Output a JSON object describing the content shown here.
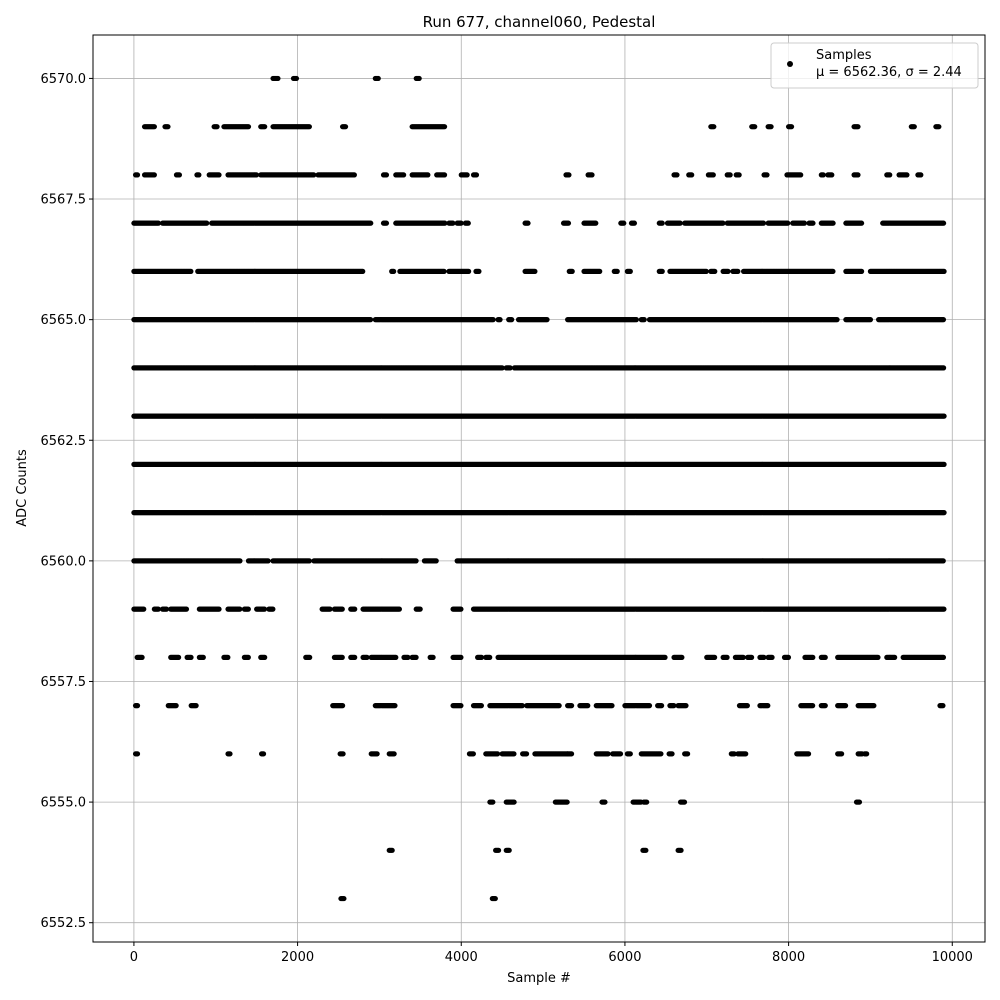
{
  "chart_data": {
    "type": "scatter",
    "title": "Run 677, channel060, Pedestal",
    "xlabel": "Sample #",
    "ylabel": "ADC Counts",
    "xlim": [
      -500,
      10400
    ],
    "ylim": [
      6552.1,
      6570.9
    ],
    "xticks": [
      0,
      2000,
      4000,
      6000,
      8000,
      10000
    ],
    "xtick_labels": [
      "0",
      "2000",
      "4000",
      "6000",
      "8000",
      "10000"
    ],
    "yticks": [
      6552.5,
      6555.0,
      6557.5,
      6560.0,
      6562.5,
      6565.0,
      6567.5,
      6570.0
    ],
    "ytick_labels": [
      "6552.5",
      "6555.0",
      "6557.5",
      "6560.0",
      "6562.5",
      "6565.0",
      "6567.5",
      "6570.0"
    ],
    "grid": true,
    "marker_color": "#000000",
    "legend": {
      "placement": "upper right",
      "label": "Samples",
      "stats": "μ = 6562.36, σ = 2.44"
    },
    "series": [
      {
        "name": "Samples",
        "level_ranges": [
          {
            "y": 6570,
            "ranges": [
              [
                1700,
                1760
              ],
              [
                1950,
                1990
              ],
              [
                2950,
                2990
              ],
              [
                3450,
                3490
              ]
            ]
          },
          {
            "y": 6569,
            "ranges": [
              [
                130,
                250
              ],
              [
                380,
                420
              ],
              [
                980,
                1020
              ],
              [
                1100,
                1400
              ],
              [
                1550,
                1600
              ],
              [
                1700,
                2150
              ],
              [
                2550,
                2590
              ],
              [
                3400,
                3800
              ],
              [
                7050,
                7090
              ],
              [
                7550,
                7590
              ],
              [
                7750,
                7790
              ],
              [
                8000,
                8040
              ],
              [
                8800,
                8850
              ],
              [
                9500,
                9540
              ],
              [
                9800,
                9840
              ]
            ]
          },
          {
            "y": 6568,
            "ranges": [
              [
                20,
                50
              ],
              [
                130,
                250
              ],
              [
                520,
                560
              ],
              [
                770,
                800
              ],
              [
                920,
                1050
              ],
              [
                1150,
                1500
              ],
              [
                1550,
                2200
              ],
              [
                2250,
                2700
              ],
              [
                3050,
                3090
              ],
              [
                3200,
                3300
              ],
              [
                3400,
                3600
              ],
              [
                3700,
                3800
              ],
              [
                4000,
                4080
              ],
              [
                4150,
                4190
              ],
              [
                5280,
                5320
              ],
              [
                5550,
                5600
              ],
              [
                6600,
                6640
              ],
              [
                6780,
                6820
              ],
              [
                7020,
                7090
              ],
              [
                7250,
                7290
              ],
              [
                7360,
                7400
              ],
              [
                7700,
                7740
              ],
              [
                7980,
                8150
              ],
              [
                8400,
                8430
              ],
              [
                8480,
                8530
              ],
              [
                8800,
                8850
              ],
              [
                9200,
                9240
              ],
              [
                9350,
                9450
              ],
              [
                9580,
                9620
              ]
            ]
          },
          {
            "y": 6567,
            "ranges": [
              [
                0,
                300
              ],
              [
                350,
                900
              ],
              [
                950,
                2900
              ],
              [
                3050,
                3090
              ],
              [
                3200,
                3800
              ],
              [
                3850,
                3900
              ],
              [
                3950,
                4000
              ],
              [
                4050,
                4090
              ],
              [
                4780,
                4820
              ],
              [
                5250,
                5320
              ],
              [
                5500,
                5650
              ],
              [
                5950,
                5990
              ],
              [
                6080,
                6120
              ],
              [
                6420,
                6460
              ],
              [
                6520,
                6680
              ],
              [
                6730,
                7200
              ],
              [
                7250,
                7700
              ],
              [
                7750,
                8000
              ],
              [
                8050,
                8200
              ],
              [
                8250,
                8300
              ],
              [
                8400,
                8550
              ],
              [
                8700,
                8900
              ],
              [
                9150,
                9900
              ]
            ]
          },
          {
            "y": 6566,
            "ranges": [
              [
                0,
                700
              ],
              [
                780,
                2800
              ],
              [
                3150,
                3180
              ],
              [
                3250,
                3800
              ],
              [
                3850,
                4100
              ],
              [
                4180,
                4220
              ],
              [
                4780,
                4900
              ],
              [
                5320,
                5360
              ],
              [
                5500,
                5700
              ],
              [
                5870,
                5910
              ],
              [
                6030,
                6070
              ],
              [
                6420,
                6460
              ],
              [
                6550,
                7000
              ],
              [
                7050,
                7100
              ],
              [
                7200,
                7260
              ],
              [
                7320,
                7380
              ],
              [
                7450,
                8550
              ],
              [
                8700,
                8900
              ],
              [
                9000,
                9900
              ]
            ]
          },
          {
            "y": 6565,
            "ranges": [
              [
                0,
                2900
              ],
              [
                2950,
                4400
              ],
              [
                4450,
                4480
              ],
              [
                4580,
                4620
              ],
              [
                4700,
                5050
              ],
              [
                5300,
                6150
              ],
              [
                6200,
                6240
              ],
              [
                6300,
                8600
              ],
              [
                8700,
                9000
              ],
              [
                9100,
                9900
              ]
            ]
          },
          {
            "y": 6564,
            "ranges": [
              [
                0,
                4500
              ],
              [
                4550,
                4600
              ],
              [
                4650,
                9900
              ]
            ]
          },
          {
            "y": 6563,
            "ranges": [
              [
                0,
                9900
              ]
            ]
          },
          {
            "y": 6562,
            "ranges": [
              [
                0,
                9900
              ]
            ]
          },
          {
            "y": 6561,
            "ranges": [
              [
                0,
                9900
              ]
            ]
          },
          {
            "y": 6560,
            "ranges": [
              [
                0,
                1300
              ],
              [
                1400,
                1650
              ],
              [
                1700,
                2150
              ],
              [
                2200,
                3450
              ],
              [
                3550,
                3700
              ],
              [
                3950,
                9900
              ]
            ]
          },
          {
            "y": 6559,
            "ranges": [
              [
                0,
                120
              ],
              [
                250,
                300
              ],
              [
                350,
                400
              ],
              [
                450,
                650
              ],
              [
                800,
                1050
              ],
              [
                1150,
                1300
              ],
              [
                1350,
                1400
              ],
              [
                1500,
                1600
              ],
              [
                1650,
                1700
              ],
              [
                2300,
                2400
              ],
              [
                2450,
                2550
              ],
              [
                2650,
                2700
              ],
              [
                2800,
                3250
              ],
              [
                3450,
                3500
              ],
              [
                3900,
                4000
              ],
              [
                4150,
                9900
              ]
            ]
          },
          {
            "y": 6558,
            "ranges": [
              [
                40,
                100
              ],
              [
                450,
                550
              ],
              [
                650,
                700
              ],
              [
                800,
                850
              ],
              [
                1100,
                1150
              ],
              [
                1350,
                1400
              ],
              [
                1550,
                1600
              ],
              [
                2100,
                2150
              ],
              [
                2450,
                2550
              ],
              [
                2650,
                2700
              ],
              [
                2800,
                2850
              ],
              [
                2900,
                3200
              ],
              [
                3300,
                3350
              ],
              [
                3400,
                3450
              ],
              [
                3620,
                3660
              ],
              [
                3900,
                4000
              ],
              [
                4200,
                4250
              ],
              [
                4300,
                4350
              ],
              [
                4450,
                6500
              ],
              [
                6600,
                6700
              ],
              [
                7000,
                7100
              ],
              [
                7200,
                7250
              ],
              [
                7350,
                7450
              ],
              [
                7500,
                7550
              ],
              [
                7650,
                7700
              ],
              [
                7750,
                7800
              ],
              [
                7950,
                8000
              ],
              [
                8200,
                8300
              ],
              [
                8400,
                8450
              ],
              [
                8600,
                9100
              ],
              [
                9200,
                9300
              ],
              [
                9400,
                9900
              ]
            ]
          },
          {
            "y": 6557,
            "ranges": [
              [
                20,
                50
              ],
              [
                420,
                520
              ],
              [
                700,
                760
              ],
              [
                2430,
                2550
              ],
              [
                2950,
                3200
              ],
              [
                3900,
                4000
              ],
              [
                4150,
                4250
              ],
              [
                4350,
                4750
              ],
              [
                4800,
                5200
              ],
              [
                5300,
                5350
              ],
              [
                5450,
                5550
              ],
              [
                5650,
                5850
              ],
              [
                6000,
                6300
              ],
              [
                6400,
                6450
              ],
              [
                6550,
                6600
              ],
              [
                6650,
                6750
              ],
              [
                7400,
                7500
              ],
              [
                7650,
                7750
              ],
              [
                8150,
                8300
              ],
              [
                8400,
                8450
              ],
              [
                8600,
                8700
              ],
              [
                8850,
                9050
              ],
              [
                9850,
                9890
              ]
            ]
          },
          {
            "y": 6556,
            "ranges": [
              [
                20,
                50
              ],
              [
                1150,
                1180
              ],
              [
                1560,
                1590
              ],
              [
                2520,
                2560
              ],
              [
                2900,
                2980
              ],
              [
                3120,
                3180
              ],
              [
                4100,
                4150
              ],
              [
                4300,
                4450
              ],
              [
                4500,
                4650
              ],
              [
                4750,
                4800
              ],
              [
                4900,
                5300
              ],
              [
                5300,
                5350
              ],
              [
                5650,
                5800
              ],
              [
                5850,
                5950
              ],
              [
                6030,
                6070
              ],
              [
                6200,
                6450
              ],
              [
                6540,
                6580
              ],
              [
                6730,
                6770
              ],
              [
                7300,
                7340
              ],
              [
                7380,
                7480
              ],
              [
                8100,
                8250
              ],
              [
                8600,
                8650
              ],
              [
                8850,
                8900
              ],
              [
                8930,
                8960
              ]
            ]
          },
          {
            "y": 6555,
            "ranges": [
              [
                4350,
                4390
              ],
              [
                4550,
                4650
              ],
              [
                5150,
                5300
              ],
              [
                5720,
                5760
              ],
              [
                6100,
                6200
              ],
              [
                6230,
                6270
              ],
              [
                6680,
                6730
              ],
              [
                8830,
                8870
              ]
            ]
          },
          {
            "y": 6554,
            "ranges": [
              [
                3120,
                3160
              ],
              [
                4420,
                4460
              ],
              [
                4550,
                4590
              ],
              [
                6220,
                6260
              ],
              [
                6650,
                6690
              ]
            ]
          },
          {
            "y": 6553,
            "ranges": [
              [
                2530,
                2570
              ],
              [
                4380,
                4420
              ]
            ]
          }
        ]
      }
    ]
  }
}
